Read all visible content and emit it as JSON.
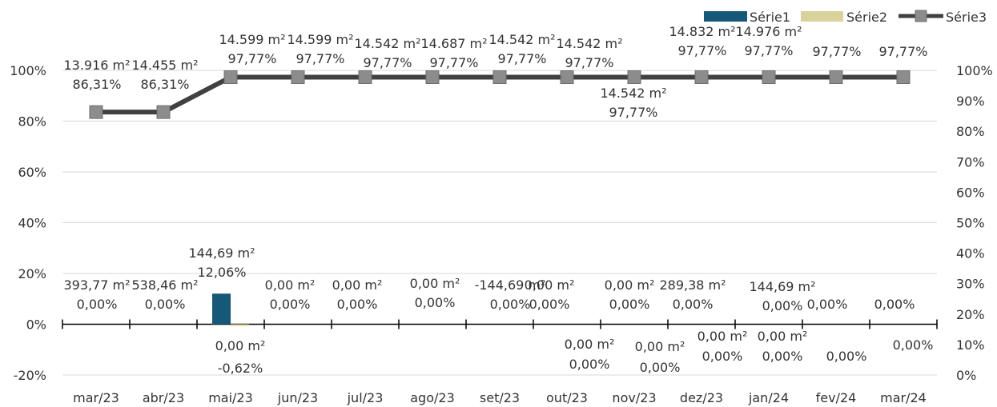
{
  "chart_data": {
    "type": "bar",
    "categories": [
      "mar/23",
      "abr/23",
      "mai/23",
      "jun/23",
      "jul/23",
      "ago/23",
      "set/23",
      "out/23",
      "nov/23",
      "dez/23",
      "jan/24",
      "fev/24",
      "mar/24"
    ],
    "left_axis": {
      "ticks": [
        "100%",
        "80%",
        "60%",
        "40%",
        "20%",
        "0%",
        "-20%"
      ],
      "ylim": [
        -20,
        100
      ]
    },
    "right_axis": {
      "ticks": [
        "100%",
        "90%",
        "80%",
        "70%",
        "60%",
        "50%",
        "40%",
        "30%",
        "20%",
        "10%",
        "0%"
      ],
      "ylim": [
        0,
        100
      ]
    },
    "legend": {
      "position": "top-right"
    },
    "series": [
      {
        "name": "Série1",
        "kind": "bar",
        "axis": "left",
        "color": "#155877",
        "values": [
          0,
          0,
          12.06,
          0,
          0,
          0,
          0,
          0,
          0,
          0,
          0,
          0,
          0
        ],
        "labels": [
          [
            "393,77 m²",
            "0,00%"
          ],
          [
            "538,46 m²",
            "0,00%"
          ],
          [
            "144,69 m²",
            "12,06%"
          ],
          [
            "0,00 m²",
            "0,00%"
          ],
          [
            "0,00 m²",
            "0,00%"
          ],
          [
            "0,00 m²",
            "0,00%"
          ],
          [
            "-144,69 m²",
            "0,00%"
          ],
          [
            "0,00 m²",
            "0,00%"
          ],
          [
            "0,00 m²",
            "0,00%"
          ],
          [
            "289,38 m²",
            "0,00%"
          ],
          [
            "144,69 m²",
            "0,00%"
          ],
          [
            "",
            "0,00%"
          ],
          [
            "",
            "0,00%"
          ]
        ]
      },
      {
        "name": "Série2",
        "kind": "bar",
        "axis": "left",
        "color": "#d9d29a",
        "values": [
          0,
          0,
          -0.62,
          0,
          0,
          0,
          0,
          0,
          0,
          0,
          0,
          0,
          0
        ],
        "labels": [
          [
            "",
            ""
          ],
          [
            "",
            ""
          ],
          [
            "0,00 m²",
            "-0,62%"
          ],
          [
            "",
            ""
          ],
          [
            "",
            ""
          ],
          [
            "",
            ""
          ],
          [
            "",
            ""
          ],
          [
            "0,00 m²",
            "0,00%"
          ],
          [
            "0,00 m²",
            "0,00%"
          ],
          [
            "0,00 m²",
            "0,00%"
          ],
          [
            "0,00 m²",
            "0,00%"
          ],
          [
            "",
            "0,00%"
          ],
          [
            "",
            "0,00%"
          ]
        ]
      },
      {
        "name": "Série3",
        "kind": "line",
        "axis": "right",
        "color": "#404040",
        "marker_color": "#8c8c8c",
        "values": [
          86.31,
          86.31,
          97.77,
          97.77,
          97.77,
          97.77,
          97.77,
          97.77,
          97.77,
          97.77,
          97.77,
          97.77,
          97.77
        ],
        "labels": [
          [
            "13.916 m²",
            "86,31%"
          ],
          [
            "14.455 m²",
            "86,31%"
          ],
          [
            "14.599 m²",
            "97,77%"
          ],
          [
            "14.599 m²",
            "97,77%"
          ],
          [
            "14.542 m²",
            "97,77%"
          ],
          [
            "14.687 m²",
            "97,77%"
          ],
          [
            "14.542 m²",
            "97,77%"
          ],
          [
            "14.542 m²",
            "97,77%"
          ],
          [
            "14.542 m²",
            "97,77%"
          ],
          [
            "14.832 m²",
            "97,77%"
          ],
          [
            "14.976 m²",
            "97,77%"
          ],
          [
            "",
            "97,77%"
          ],
          [
            "",
            "97,77%"
          ]
        ]
      }
    ]
  }
}
